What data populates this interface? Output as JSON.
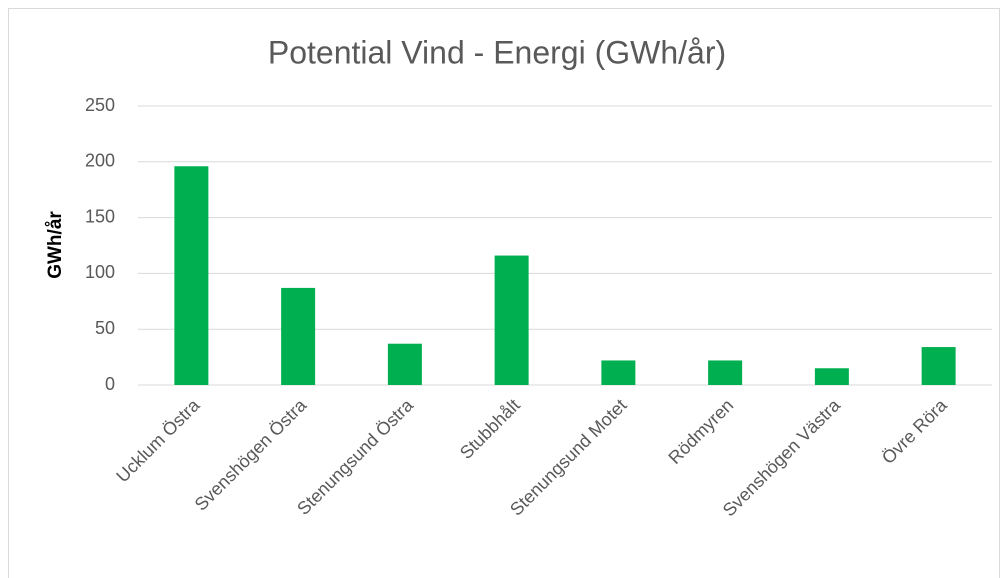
{
  "chart_data": {
    "type": "bar",
    "title": "Potential Vind - Energi (GWh/år)",
    "y_label": "GWh/år",
    "categories": [
      "Ucklum Östra",
      "Svenshögen Östra",
      "Stenungsund Östra",
      "Stubbhålt",
      "Stenungsund Motet",
      "Rödmyren",
      "Svenshögen Västra",
      "Övre Röra"
    ],
    "values": [
      196,
      87,
      37,
      116,
      22,
      22,
      15,
      34
    ],
    "color": "#00b050",
    "ylim": [
      0,
      250
    ],
    "yticks": [
      0,
      50,
      100,
      150,
      200,
      250
    ],
    "grid": true
  }
}
